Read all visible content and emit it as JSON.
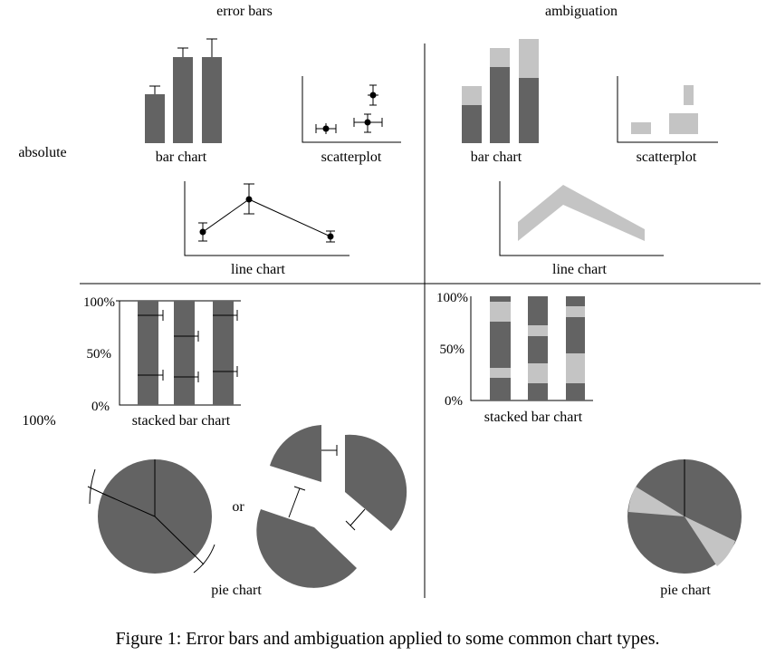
{
  "headers": {
    "left": "error bars",
    "right": "ambiguation"
  },
  "rows": {
    "top": "absolute",
    "bottom": "100%"
  },
  "labels": {
    "bar_chart_eb": "bar chart",
    "scatter_eb": "scatterplot",
    "bar_chart_amb": "bar chart",
    "scatter_amb": "scatterplot",
    "line_chart_eb": "line chart",
    "line_chart_amb": "line chart",
    "stacked_eb": "stacked bar chart",
    "stacked_amb": "stacked bar chart",
    "pie_eb": "pie chart",
    "pie_amb": "pie chart",
    "or": "or"
  },
  "axes_percent": {
    "top": "100%",
    "mid": "50%",
    "bottom": "0%"
  },
  "colors": {
    "dark": "#636363",
    "light": "#c4c4c4"
  },
  "caption": "Figure 1: Error bars and ambiguation applied to some common chart types."
}
